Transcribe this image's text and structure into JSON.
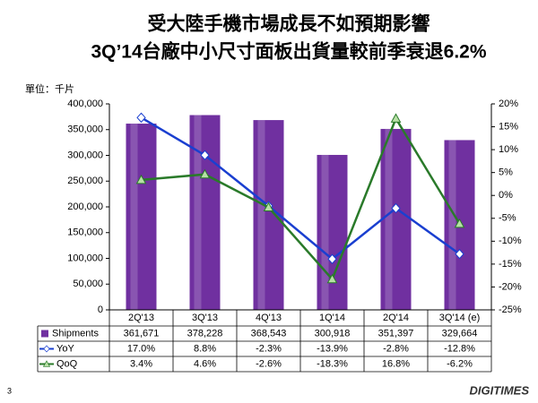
{
  "chart_data": {
    "type": "bar",
    "title": "受大陸手機市場成長不如預期影響",
    "subtitle": "3Q’14台廠中小尺寸面板出貨量較前季衰退6.2%",
    "unit_label": "單位：千片",
    "categories": [
      "2Q'13",
      "3Q'13",
      "4Q'13",
      "1Q'14",
      "2Q'14",
      "3Q'14 (e)"
    ],
    "series": [
      {
        "name": "Shipments",
        "type": "bar",
        "color": "#7030a0",
        "values": [
          361671,
          378228,
          368543,
          300918,
          351397,
          329664
        ],
        "value_labels": [
          "361,671",
          "378,228",
          "368,543",
          "300,918",
          "351,397",
          "329,664"
        ]
      },
      {
        "name": "YoY",
        "type": "line",
        "axis": "y2",
        "marker": "diamond",
        "color": "#1a3fd0",
        "values": [
          17.0,
          8.8,
          -2.3,
          -13.9,
          -2.8,
          -12.8
        ],
        "value_labels": [
          "17.0%",
          "8.8%",
          "-2.3%",
          "-13.9%",
          "-2.8%",
          "-12.8%"
        ]
      },
      {
        "name": "QoQ",
        "type": "line",
        "axis": "y2",
        "marker": "triangle",
        "color": "#2a7a2a",
        "values": [
          3.4,
          4.6,
          -2.6,
          -18.3,
          16.8,
          -6.2
        ],
        "value_labels": [
          "3.4%",
          "4.6%",
          "-2.6%",
          "-18.3%",
          "16.8%",
          "-6.2%"
        ]
      }
    ],
    "ylim": [
      0,
      400000
    ],
    "yticks": [
      0,
      {
        "value": 50000,
        "label": "50,000"
      },
      {
        "value": 100000,
        "label": "100,000"
      },
      {
        "value": 150000,
        "label": "150,000"
      },
      {
        "value": 200000,
        "label": "200,000"
      },
      {
        "value": 250000,
        "label": "250,000"
      },
      {
        "value": 300000,
        "label": "300,000"
      },
      {
        "value": 350000,
        "label": "350,000"
      },
      {
        "value": 400000,
        "label": "400,000"
      }
    ],
    "y2lim": [
      -25,
      20
    ],
    "y2ticks": [
      {
        "value": -25,
        "label": "-25%"
      },
      {
        "value": -20,
        "label": "-20%"
      },
      {
        "value": -15,
        "label": "-15%"
      },
      {
        "value": -10,
        "label": "-10%"
      },
      {
        "value": -5,
        "label": "-5%"
      },
      {
        "value": 0,
        "label": "0%"
      },
      {
        "value": 5,
        "label": "5%"
      },
      {
        "value": 10,
        "label": "10%"
      },
      {
        "value": 15,
        "label": "15%"
      },
      {
        "value": 20,
        "label": "20%"
      }
    ]
  },
  "footer": {
    "page_number": "3",
    "logo": "DIGITIMES"
  }
}
